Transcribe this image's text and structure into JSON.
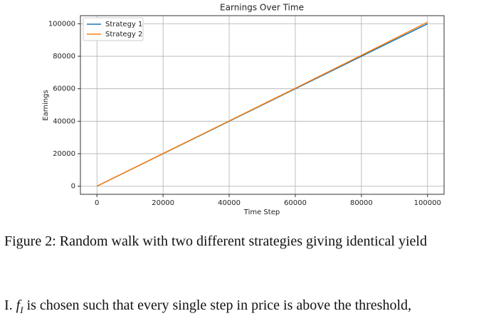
{
  "chart_data": {
    "type": "line",
    "title": "Earnings Over Time",
    "xlabel": "Time Step",
    "ylabel": "Earnings",
    "x": [
      0,
      20000,
      40000,
      60000,
      80000,
      100000
    ],
    "series": [
      {
        "name": "Strategy 1",
        "color": "#1f77b4",
        "values": [
          0,
          20000,
          40000,
          60000,
          80000,
          100000
        ]
      },
      {
        "name": "Strategy 2",
        "color": "#ff7f0e",
        "values": [
          0,
          20100,
          40200,
          60300,
          80600,
          101000
        ]
      }
    ],
    "xlim": [
      -5000,
      105000
    ],
    "ylim": [
      -5000,
      105000
    ],
    "xticks": [
      0,
      20000,
      40000,
      60000,
      80000,
      100000
    ],
    "yticks": [
      0,
      20000,
      40000,
      60000,
      80000,
      100000
    ],
    "grid": true,
    "legend": "upper left"
  },
  "caption": "Figure 2: Random walk with two different strategies giving identical yield",
  "body": {
    "item": "I.",
    "symbol": "f",
    "subscript": "I",
    "text": "is chosen such that every single step in price is above the threshold,"
  }
}
